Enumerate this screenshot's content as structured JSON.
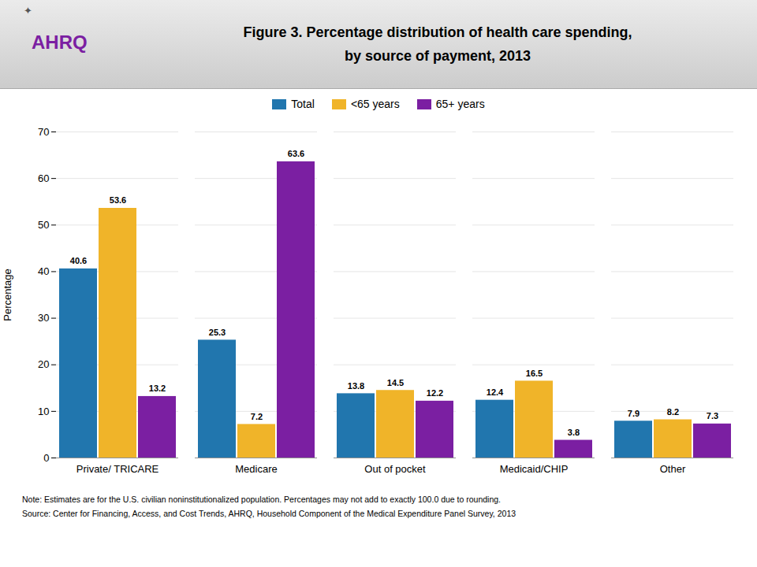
{
  "chart_data": {
    "type": "bar",
    "title": "Figure 3. Percentage distribution of health care spending,",
    "subtitle": "by source of payment, 2013",
    "logo": "AHRQ",
    "logo_mark": "✦",
    "categories": [
      "Private/ TRICARE",
      "Medicare",
      "Out of pocket",
      "Medicaid/CHIP",
      "Other"
    ],
    "series": [
      {
        "name": "Total",
        "color": "#2176ae",
        "values": [
          40.6,
          25.3,
          13.8,
          12.4,
          7.9
        ]
      },
      {
        "name": "<65 years",
        "color": "#f0b429",
        "values": [
          53.6,
          7.2,
          14.5,
          16.5,
          8.2
        ]
      },
      {
        "name": "65+ years",
        "color": "#7b1fa2",
        "values": [
          13.2,
          63.6,
          12.2,
          3.8,
          7.3
        ]
      }
    ],
    "ylabel": "Percentage",
    "ylim": [
      0,
      70
    ],
    "yticks": [
      0,
      10,
      20,
      30,
      40,
      50,
      60,
      70
    ],
    "grid": true,
    "legend": "top",
    "data_labels": true,
    "annotations": [
      "Note: Estimates are for the U.S. civilian noninstitutionalized population. Percentages may not add to exactly 100.0 due to rounding.",
      "Source: Center for Financing, Access, and Cost Trends, AHRQ, Household Component of the Medical Expenditure Panel Survey, 2013"
    ]
  }
}
